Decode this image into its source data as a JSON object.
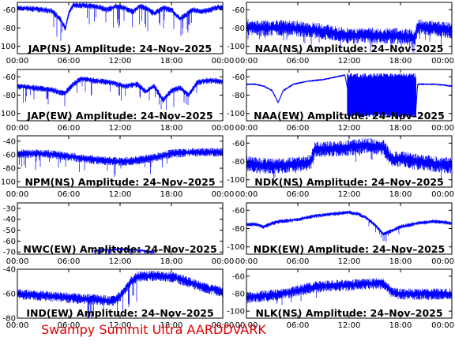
{
  "footer_text": "Swampy Summit Ultra AARDDVARK",
  "colors": {
    "trace": "#0000ff",
    "footer": "#e00000",
    "axis": "#000000"
  },
  "chart_data": [
    {
      "type": "line",
      "title": "JAP(NS) Amplitude: 24–Nov–2025",
      "xlabel": "",
      "ylabel": "",
      "xlim": [
        0,
        24
      ],
      "ylim": [
        -108,
        -52
      ],
      "yticks": [
        -100,
        -80,
        -60
      ],
      "xticks": [
        "00:00",
        "06:00",
        "12:00",
        "18:00",
        "00:00"
      ],
      "noise": 3,
      "spike_rate": 0.09,
      "spike_depth": 22,
      "spike_window": [
        4,
        21
      ],
      "series": [
        {
          "x": [
            0,
            2,
            4,
            5,
            5.6,
            6,
            6.5,
            7.5,
            9,
            10.5,
            11.5,
            12.5,
            13.5,
            14.2,
            15,
            16,
            17,
            18,
            19,
            20.5,
            21.5,
            22.5,
            23.5,
            24
          ],
          "values": [
            -58,
            -59,
            -61,
            -70,
            -80,
            -64,
            -55,
            -55,
            -56,
            -60,
            -56,
            -58,
            -62,
            -56,
            -58,
            -64,
            -58,
            -60,
            -70,
            -60,
            -62,
            -60,
            -57,
            -58
          ]
        }
      ]
    },
    {
      "type": "line",
      "title": "NAA(NS) Amplitude: 24–Nov–2025",
      "xlabel": "",
      "ylabel": "",
      "xlim": [
        0,
        24
      ],
      "ylim": [
        -108,
        -52
      ],
      "yticks": [
        -100,
        -80,
        -60
      ],
      "xticks": [
        "00:00",
        "06:00",
        "12:00",
        "18:00",
        "00:00"
      ],
      "noise": 8,
      "spike_rate": 0.05,
      "spike_depth": 12,
      "spike_window": [
        0,
        24
      ],
      "series": [
        {
          "x": [
            0,
            2,
            4,
            6,
            8,
            10,
            12,
            14,
            16,
            18,
            19.7,
            20,
            22,
            24
          ],
          "values": [
            -78,
            -80,
            -79,
            -80,
            -82,
            -85,
            -88,
            -87,
            -88,
            -88,
            -90,
            -78,
            -80,
            -82
          ]
        }
      ]
    },
    {
      "type": "line",
      "title": "JAP(EW) Amplitude: 24–Nov–2025",
      "xlabel": "",
      "ylabel": "",
      "xlim": [
        0,
        24
      ],
      "ylim": [
        -108,
        -52
      ],
      "yticks": [
        -100,
        -80,
        -60
      ],
      "xticks": [
        "00:00",
        "06:00",
        "12:00",
        "18:00",
        "00:00"
      ],
      "noise": 3,
      "spike_rate": 0.08,
      "spike_depth": 16,
      "spike_window": [
        0,
        21
      ],
      "series": [
        {
          "x": [
            0,
            2,
            4,
            5.5,
            6.5,
            7.5,
            9,
            11,
            12.5,
            14,
            15,
            16,
            17,
            18,
            19,
            20,
            21,
            22,
            23,
            24
          ],
          "values": [
            -70,
            -72,
            -74,
            -78,
            -68,
            -62,
            -64,
            -66,
            -70,
            -68,
            -76,
            -70,
            -85,
            -75,
            -72,
            -80,
            -66,
            -64,
            -64,
            -65
          ]
        }
      ]
    },
    {
      "type": "line",
      "title": "NAA(EW) Amplitude: 24–Nov–2025",
      "xlabel": "",
      "ylabel": "",
      "xlim": [
        0,
        24
      ],
      "ylim": [
        -108,
        -52
      ],
      "yticks": [
        -100,
        -80,
        -60
      ],
      "xticks": [
        "00:00",
        "06:00",
        "12:00",
        "18:00",
        "00:00"
      ],
      "noise": 1,
      "spike_rate": 0.0,
      "spike_depth": 0,
      "spike_window": [
        0,
        0
      ],
      "series": [
        {
          "x": [
            0,
            1,
            2,
            3,
            3.7,
            4.3,
            5.5,
            7,
            9,
            10.5,
            11.5,
            12,
            14,
            16,
            18,
            19.8,
            20,
            22,
            24
          ],
          "values": [
            -68,
            -68,
            -70,
            -75,
            -88,
            -75,
            -68,
            -65,
            -63,
            -60,
            -58,
            -82,
            -84,
            -86,
            -90,
            -96,
            -68,
            -68,
            -70
          ]
        }
      ],
      "bands": [
        {
          "from": 11.8,
          "to": 19.8,
          "low": -100,
          "high": -62
        }
      ]
    },
    {
      "type": "line",
      "title": "NPM(NS) Amplitude: 24–Nov–2025",
      "xlabel": "",
      "ylabel": "",
      "xlim": [
        0,
        24
      ],
      "ylim": [
        -108,
        -32
      ],
      "yticks": [
        -100,
        -80,
        -60,
        -40
      ],
      "xticks": [
        "00:00",
        "06:00",
        "12:00",
        "18:00",
        "00:00"
      ],
      "noise": 6,
      "spike_rate": 0.06,
      "spike_depth": 18,
      "spike_window": [
        0,
        18
      ],
      "series": [
        {
          "x": [
            0,
            2,
            4,
            6,
            8,
            10,
            12,
            14,
            16,
            18,
            20,
            22,
            24
          ],
          "values": [
            -58,
            -58,
            -59,
            -62,
            -66,
            -68,
            -70,
            -68,
            -64,
            -58,
            -56,
            -56,
            -56
          ]
        }
      ]
    },
    {
      "type": "line",
      "title": "NDK(NS) Amplitude: 24–Nov–2025",
      "xlabel": "",
      "ylabel": "",
      "xlim": [
        0,
        24
      ],
      "ylim": [
        -108,
        -52
      ],
      "yticks": [
        -100,
        -80,
        -60
      ],
      "xticks": [
        "00:00",
        "06:00",
        "12:00",
        "18:00",
        "00:00"
      ],
      "noise": 8,
      "spike_rate": 0.03,
      "spike_depth": 10,
      "spike_window": [
        0,
        24
      ],
      "series": [
        {
          "x": [
            0,
            2,
            4,
            6,
            7.5,
            8,
            10,
            12,
            14,
            16,
            17,
            18,
            20,
            22,
            24
          ],
          "values": [
            -82,
            -84,
            -84,
            -82,
            -80,
            -66,
            -66,
            -64,
            -62,
            -64,
            -78,
            -76,
            -80,
            -82,
            -84
          ]
        }
      ]
    },
    {
      "type": "line",
      "title": "NWC(EW) Amplitude: 24–Nov–2025",
      "xlabel": "",
      "ylabel": "",
      "xlim": [
        0,
        24
      ],
      "ylim": [
        -72,
        -25
      ],
      "yticks": [
        -70,
        -60,
        -50,
        -40,
        -30
      ],
      "xticks": [
        "00:00",
        "06:00",
        "12:00",
        "18:00",
        "00:00"
      ],
      "noise": 1,
      "spike_rate": 0.2,
      "spike_depth": 8,
      "spike_window": [
        9,
        16
      ],
      "series": [
        {
          "x": [
            9,
            10,
            11,
            12,
            13,
            14,
            15,
            16
          ],
          "values": [
            -69,
            -68,
            -68,
            -67,
            -68,
            -68,
            -69,
            -70
          ]
        }
      ]
    },
    {
      "type": "line",
      "title": "NDK(EW) Amplitude: 24–Nov–2025",
      "xlabel": "",
      "ylabel": "",
      "xlim": [
        0,
        24
      ],
      "ylim": [
        -108,
        -52
      ],
      "yticks": [
        -100,
        -80,
        -60
      ],
      "xticks": [
        "00:00",
        "06:00",
        "12:00",
        "18:00",
        "00:00"
      ],
      "noise": 2,
      "spike_rate": 0.05,
      "spike_depth": 8,
      "spike_window": [
        14,
        18
      ],
      "series": [
        {
          "x": [
            0,
            1,
            2,
            3,
            4,
            6,
            8,
            10,
            12,
            13,
            14,
            15,
            16,
            17,
            18,
            20,
            22,
            24
          ],
          "values": [
            -76,
            -75,
            -78,
            -74,
            -72,
            -70,
            -66,
            -64,
            -62,
            -64,
            -68,
            -76,
            -86,
            -82,
            -78,
            -74,
            -72,
            -74
          ]
        }
      ]
    },
    {
      "type": "line",
      "title": "IND(EW) Amplitude: 24–Nov–2025",
      "xlabel": "",
      "ylabel": "",
      "xlim": [
        0,
        24
      ],
      "ylim": [
        -80,
        -40
      ],
      "yticks": [
        -80,
        -60,
        -40
      ],
      "xticks": [
        "00:00",
        "06:00",
        "12:00",
        "18:00",
        "00:00"
      ],
      "noise": 4,
      "spike_rate": 0.12,
      "spike_depth": 16,
      "spike_window": [
        8,
        14
      ],
      "series": [
        {
          "x": [
            0,
            2,
            4,
            6,
            8,
            10,
            11,
            12,
            13,
            14,
            16,
            18,
            20,
            22,
            24
          ],
          "values": [
            -60,
            -61,
            -62,
            -63,
            -64,
            -65,
            -66,
            -62,
            -52,
            -46,
            -45,
            -46,
            -50,
            -55,
            -58
          ]
        }
      ]
    },
    {
      "type": "line",
      "title": "NLK(NS) Amplitude: 24–Nov–2025",
      "xlabel": "",
      "ylabel": "",
      "xlim": [
        0,
        24
      ],
      "ylim": [
        -108,
        -52
      ],
      "yticks": [
        -100,
        -80,
        -60
      ],
      "xticks": [
        "00:00",
        "06:00",
        "12:00",
        "18:00",
        "00:00"
      ],
      "noise": 6,
      "spike_rate": 0.03,
      "spike_depth": 10,
      "spike_window": [
        0,
        10
      ],
      "series": [
        {
          "x": [
            0,
            2,
            4,
            6,
            8,
            10,
            12,
            14,
            16,
            17,
            18,
            20,
            22,
            24
          ],
          "values": [
            -84,
            -82,
            -80,
            -76,
            -72,
            -70,
            -70,
            -68,
            -68,
            -78,
            -80,
            -80,
            -80,
            -80
          ]
        }
      ]
    }
  ]
}
